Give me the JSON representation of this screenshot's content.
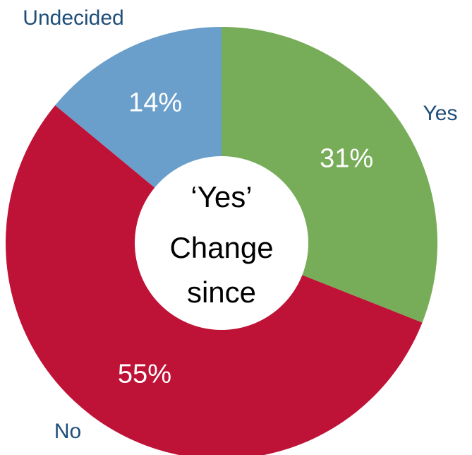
{
  "chart_data": {
    "type": "pie",
    "donut": true,
    "slices": [
      {
        "category": "Yes",
        "percent": 31,
        "label": "31%",
        "color": "#77ac58"
      },
      {
        "category": "No",
        "percent": 55,
        "label": "55%",
        "color": "#bf1237"
      },
      {
        "category": "Undecided",
        "percent": 14,
        "label": "14%",
        "color": "#6a9fcb"
      }
    ],
    "center_text": [
      "‘Yes’",
      "Change",
      "since"
    ],
    "category_label_color": "#1f4e79"
  }
}
